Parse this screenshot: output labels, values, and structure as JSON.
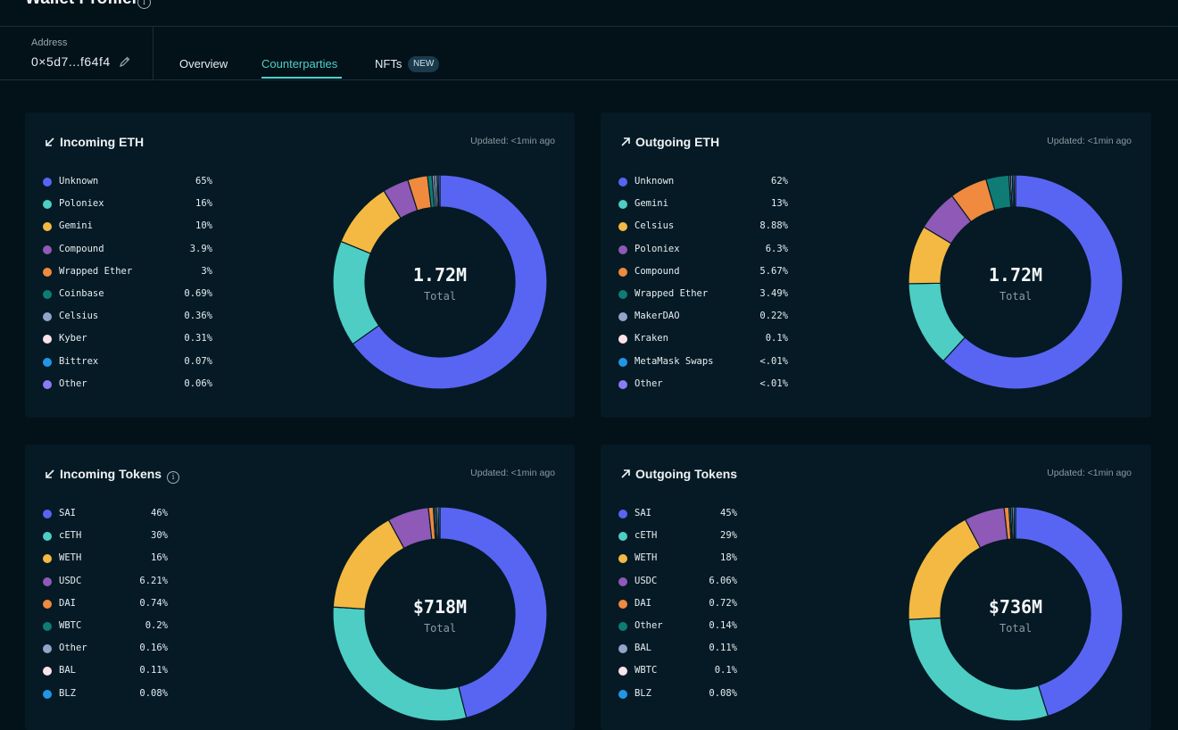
{
  "header": {
    "title": "Wallet Profiler"
  },
  "address": {
    "label": "Address",
    "value": "0×5d7...f64f4"
  },
  "tabs": [
    {
      "label": "Overview"
    },
    {
      "label": "Counterparties"
    },
    {
      "label": "NFTs"
    }
  ],
  "new_badge": "NEW",
  "colors": {
    "accent": "#4fd1c5",
    "series": [
      "#5865f2",
      "#4ecdc4",
      "#f4b942",
      "#8e59b7",
      "#ef8a3e",
      "#0e7c74",
      "#94a3c9",
      "#fde2ea",
      "#2196e8",
      "#8b7cf6"
    ]
  },
  "cards": [
    {
      "title": "Incoming ETH",
      "direction": "incoming",
      "info_icon": false,
      "updated": "Updated: <1min ago",
      "total": "1.72M",
      "total_label": "Total",
      "chart_data": {
        "type": "pie",
        "categories": [
          "Unknown",
          "Poloniex",
          "Gemini",
          "Compound",
          "Wrapped Ether",
          "Coinbase",
          "Celsius",
          "Kyber",
          "Bittrex",
          "Other"
        ],
        "values": [
          65,
          16,
          10,
          3.9,
          3,
          0.69,
          0.36,
          0.31,
          0.07,
          0.06
        ],
        "labels": [
          "65%",
          "16%",
          "10%",
          "3.9%",
          "3%",
          "0.69%",
          "0.36%",
          "0.31%",
          "0.07%",
          "0.06%"
        ]
      }
    },
    {
      "title": "Outgoing ETH",
      "direction": "outgoing",
      "info_icon": false,
      "updated": "Updated: <1min ago",
      "total": "1.72M",
      "total_label": "Total",
      "chart_data": {
        "type": "pie",
        "categories": [
          "Unknown",
          "Gemini",
          "Celsius",
          "Poloniex",
          "Compound",
          "Wrapped Ether",
          "MakerDAO",
          "Kraken",
          "MetaMask Swaps",
          "Other"
        ],
        "values": [
          62,
          13,
          8.88,
          6.3,
          5.67,
          3.49,
          0.22,
          0.1,
          0.005,
          0.005
        ],
        "labels": [
          "62%",
          "13%",
          "8.88%",
          "6.3%",
          "5.67%",
          "3.49%",
          "0.22%",
          "0.1%",
          "<.01%",
          "<.01%"
        ]
      }
    },
    {
      "title": "Incoming Tokens",
      "direction": "incoming",
      "info_icon": true,
      "updated": "Updated: <1min ago",
      "total": "$718M",
      "total_label": "Total",
      "chart_data": {
        "type": "pie",
        "categories": [
          "SAI",
          "cETH",
          "WETH",
          "USDC",
          "DAI",
          "WBTC",
          "Other",
          "BAL",
          "BLZ"
        ],
        "values": [
          46,
          30,
          16,
          6.21,
          0.74,
          0.2,
          0.16,
          0.11,
          0.08
        ],
        "labels": [
          "46%",
          "30%",
          "16%",
          "6.21%",
          "0.74%",
          "0.2%",
          "0.16%",
          "0.11%",
          "0.08%"
        ]
      }
    },
    {
      "title": "Outgoing Tokens",
      "direction": "outgoing",
      "info_icon": false,
      "updated": "Updated: <1min ago",
      "total": "$736M",
      "total_label": "Total",
      "chart_data": {
        "type": "pie",
        "categories": [
          "SAI",
          "cETH",
          "WETH",
          "USDC",
          "DAI",
          "Other",
          "BAL",
          "WBTC",
          "BLZ"
        ],
        "values": [
          45,
          29,
          18,
          6.06,
          0.72,
          0.14,
          0.11,
          0.1,
          0.08
        ],
        "labels": [
          "45%",
          "29%",
          "18%",
          "6.06%",
          "0.72%",
          "0.14%",
          "0.11%",
          "0.1%",
          "0.08%"
        ]
      }
    }
  ]
}
